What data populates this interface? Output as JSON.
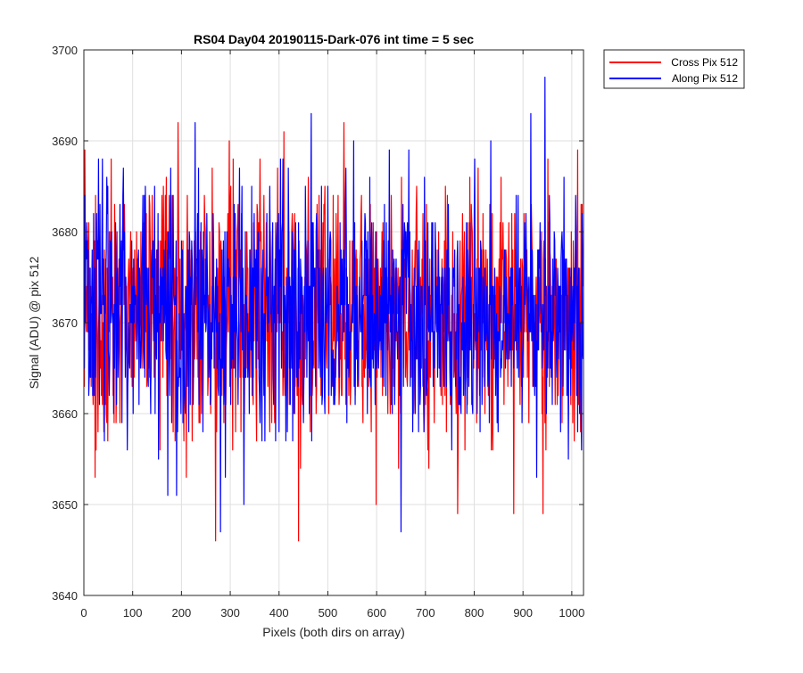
{
  "chart_data": {
    "type": "line",
    "title": "RS04 Day04 20190115-Dark-076 int time = 5 sec",
    "xlabel": "Pixels (both dirs on array)",
    "ylabel": "Signal (ADU) @ pix 512",
    "xlim": [
      0,
      1024
    ],
    "ylim": [
      3640,
      3700
    ],
    "xticks": [
      0,
      100,
      200,
      300,
      400,
      500,
      600,
      700,
      800,
      900,
      1000
    ],
    "yticks": [
      3640,
      3650,
      3660,
      3670,
      3680,
      3690,
      3700
    ],
    "grid": true,
    "legend_position": "outside top-right",
    "series_stats": {
      "mean": 3671,
      "spread": 7,
      "num_points": 1024
    },
    "series": [
      {
        "name": "Cross Pix 512",
        "color": "#ff0000",
        "min": 3646,
        "max": 3692,
        "extremes": [
          {
            "x": 0,
            "y": 3683
          },
          {
            "x": 23,
            "y": 3653
          },
          {
            "x": 81,
            "y": 3686
          },
          {
            "x": 193,
            "y": 3692
          },
          {
            "x": 270,
            "y": 3646
          },
          {
            "x": 306,
            "y": 3688
          },
          {
            "x": 410,
            "y": 3691
          },
          {
            "x": 440,
            "y": 3646
          },
          {
            "x": 533,
            "y": 3692
          },
          {
            "x": 855,
            "y": 3686
          },
          {
            "x": 881,
            "y": 3649
          },
          {
            "x": 941,
            "y": 3649
          }
        ]
      },
      {
        "name": "Along Pix 512",
        "color": "#0000ff",
        "min": 3647,
        "max": 3697,
        "extremes": [
          {
            "x": 38,
            "y": 3688
          },
          {
            "x": 190,
            "y": 3651
          },
          {
            "x": 228,
            "y": 3692
          },
          {
            "x": 280,
            "y": 3647
          },
          {
            "x": 466,
            "y": 3693
          },
          {
            "x": 553,
            "y": 3690
          },
          {
            "x": 650,
            "y": 3647
          },
          {
            "x": 916,
            "y": 3693
          },
          {
            "x": 945,
            "y": 3697
          },
          {
            "x": 1020,
            "y": 3656
          }
        ]
      }
    ]
  }
}
